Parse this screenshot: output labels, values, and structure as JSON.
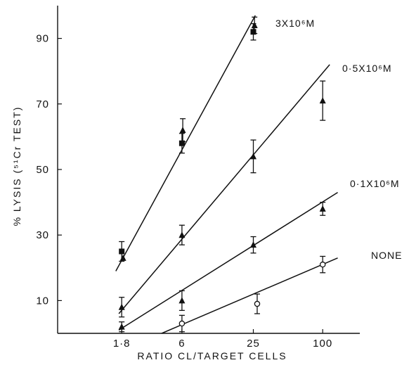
{
  "chart_data": {
    "type": "line",
    "xlabel": "RATIO  CL/TARGET  CELLS",
    "ylabel": "% LYSIS (⁵¹Cr TEST)",
    "x_scale": "log",
    "xlim": [
      0.5,
      210
    ],
    "ylim": [
      0,
      100
    ],
    "x_ticks": [
      {
        "value": 1.8,
        "label": "1·8"
      },
      {
        "value": 6,
        "label": "6"
      },
      {
        "value": 25,
        "label": "25"
      },
      {
        "value": 100,
        "label": "100"
      }
    ],
    "y_ticks": [
      {
        "value": 10,
        "label": "10"
      },
      {
        "value": 30,
        "label": "30"
      },
      {
        "value": 50,
        "label": "50"
      },
      {
        "value": 70,
        "label": "70"
      },
      {
        "value": 90,
        "label": "90"
      }
    ],
    "series": [
      {
        "name": "3X10⁶M",
        "fit_line": [
          [
            1.6,
            19
          ],
          [
            26,
            97
          ]
        ],
        "points": [
          {
            "x": 1.8,
            "y": 25,
            "err": 3,
            "marker": "square"
          },
          {
            "x": 1.85,
            "y": 23,
            "err": 0,
            "marker": "triangle"
          },
          {
            "x": 6,
            "y": 58,
            "err": 3,
            "marker": "square"
          },
          {
            "x": 6.1,
            "y": 62,
            "err": 3.5,
            "marker": "triangle"
          },
          {
            "x": 25,
            "y": 92,
            "err": 2.5,
            "marker": "square"
          },
          {
            "x": 25.6,
            "y": 94,
            "err": 2.5,
            "marker": "triangle"
          }
        ]
      },
      {
        "name": "0·5X10⁶M",
        "fit_line": [
          [
            1.7,
            6
          ],
          [
            115,
            82
          ]
        ],
        "points": [
          {
            "x": 1.8,
            "y": 8,
            "err": 3,
            "marker": "triangle"
          },
          {
            "x": 6,
            "y": 30,
            "err": 3,
            "marker": "triangle"
          },
          {
            "x": 25,
            "y": 54,
            "err": 5,
            "marker": "triangle"
          },
          {
            "x": 100,
            "y": 71,
            "err": 6,
            "marker": "triangle"
          }
        ]
      },
      {
        "name": "0·1X10⁶M",
        "fit_line": [
          [
            1.7,
            1
          ],
          [
            135,
            43
          ]
        ],
        "points": [
          {
            "x": 1.8,
            "y": 2,
            "err": 1.5,
            "marker": "triangle"
          },
          {
            "x": 6,
            "y": 10,
            "err": 3,
            "marker": "triangle"
          },
          {
            "x": 25,
            "y": 27,
            "err": 2.5,
            "marker": "triangle"
          },
          {
            "x": 100,
            "y": 38,
            "err": 2,
            "marker": "triangle"
          }
        ]
      },
      {
        "name": "NONE",
        "fit_line": [
          [
            4,
            0
          ],
          [
            135,
            23
          ]
        ],
        "points": [
          {
            "x": 6,
            "y": 3,
            "err": 2.5,
            "marker": "circle"
          },
          {
            "x": 27,
            "y": 9,
            "err": 3,
            "marker": "circle"
          },
          {
            "x": 100,
            "y": 21,
            "err": 2.5,
            "marker": "circle"
          }
        ]
      }
    ]
  }
}
